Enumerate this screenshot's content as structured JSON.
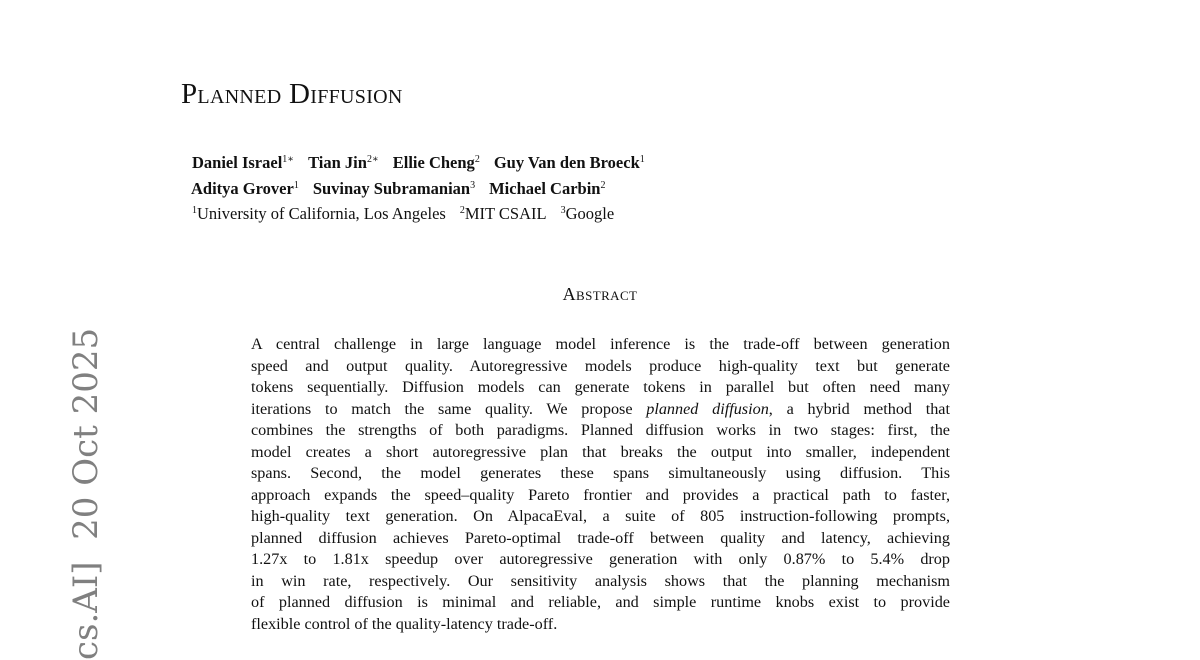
{
  "side_label": "cs.AI]  20 Oct 2025",
  "title": "Planned Diffusion",
  "authors": [
    [
      {
        "name": "Daniel Israel",
        "sup": "1∗"
      },
      {
        "name": "Tian Jin",
        "sup": "2∗"
      },
      {
        "name": "Ellie Cheng",
        "sup": "2"
      },
      {
        "name": "Guy Van den Broeck",
        "sup": "1"
      }
    ],
    [
      {
        "name": "Aditya Grover",
        "sup": "1"
      },
      {
        "name": "Suvinay Subramanian",
        "sup": "3"
      },
      {
        "name": "Michael Carbin",
        "sup": "2"
      }
    ]
  ],
  "affiliations": [
    {
      "sup": "1",
      "name": "University of California, Los Angeles"
    },
    {
      "sup": "2",
      "name": "MIT CSAIL"
    },
    {
      "sup": "3",
      "name": "Google"
    }
  ],
  "abstract_heading": "Abstract",
  "abstract_lines": [
    "A central challenge in large language model inference is the trade-off between generation",
    "speed and output quality. Autoregressive models produce high-quality text but generate",
    "tokens sequentially. Diffusion models can generate tokens in parallel but often need many",
    [
      "iterations to match the same quality. We propose ",
      "planned diffusion",
      ", a hybrid method that"
    ],
    "combines the strengths of both paradigms. Planned diffusion works in two stages: first, the",
    "model creates a short autoregressive plan that breaks the output into smaller, independent",
    "spans. Second, the model generates these spans simultaneously using diffusion. This",
    "approach expands the speed–quality Pareto frontier and provides a practical path to faster,",
    "high-quality text generation. On AlpacaEval, a suite of 805 instruction-following prompts,",
    "planned diffusion achieves Pareto-optimal trade-off between quality and latency, achieving",
    "1.27x to 1.81x speedup over autoregressive generation with only 0.87% to 5.4% drop",
    "in win rate, respectively. Our sensitivity analysis shows that the planning mechanism",
    "of planned diffusion is minimal and reliable, and simple runtime knobs exist to provide",
    "flexible control of the quality-latency trade-off."
  ]
}
